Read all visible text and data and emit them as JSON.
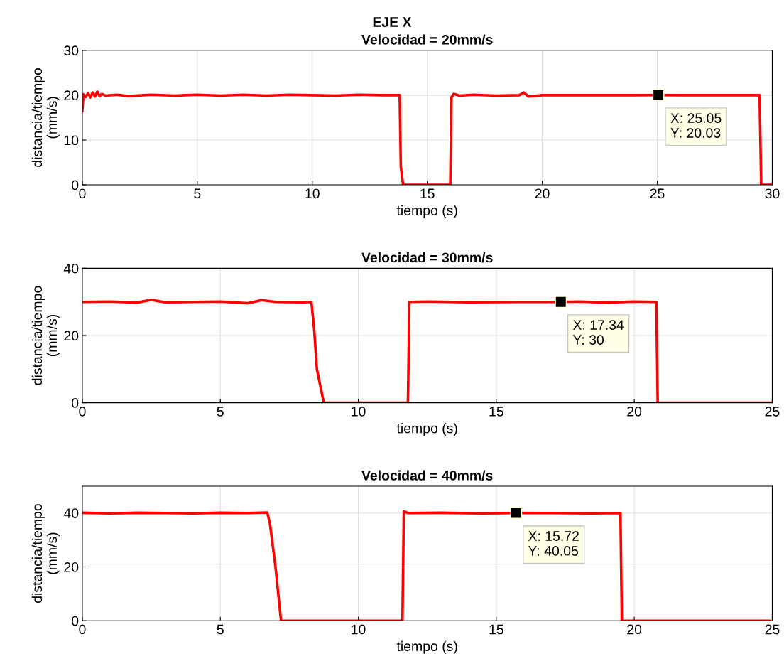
{
  "chart_data": [
    {
      "type": "line",
      "title": "EJE X",
      "subtitle": "Velocidad = 20mm/s",
      "xlabel": "tiempo (s)",
      "ylabel": "distancia/tiempo\n(mm/s)",
      "xlim": [
        0,
        30
      ],
      "ylim": [
        0,
        30
      ],
      "xticks": [
        0,
        5,
        10,
        15,
        20,
        25,
        30
      ],
      "yticks": [
        0,
        10,
        20,
        30
      ],
      "grid": true,
      "series": [
        {
          "color": "#ff0000",
          "x": [
            0,
            0.05,
            0.15,
            0.25,
            0.35,
            0.45,
            0.55,
            0.65,
            0.75,
            0.85,
            1.0,
            1.5,
            2.0,
            3.0,
            4.0,
            5.0,
            6.0,
            7.0,
            8.0,
            9.0,
            10.0,
            11.0,
            12.0,
            13.0,
            13.8,
            13.85,
            13.95,
            15.0,
            16.0,
            16.05,
            16.15,
            16.4,
            17.0,
            18.0,
            19.0,
            19.2,
            19.4,
            20.0,
            22.0,
            24.0,
            25.05,
            26.0,
            28.0,
            29.45,
            29.52,
            29.6,
            30.0
          ],
          "values": [
            16.5,
            20.2,
            19.6,
            20.5,
            19.5,
            20.6,
            19.7,
            20.8,
            19.8,
            20.3,
            19.9,
            20.1,
            19.8,
            20.1,
            19.9,
            20.1,
            19.9,
            20.1,
            19.9,
            20.1,
            20.0,
            19.9,
            20.1,
            20.0,
            20.0,
            4.0,
            0.0,
            0.0,
            0.0,
            19.5,
            20.3,
            19.9,
            20.1,
            19.9,
            20.0,
            20.6,
            19.7,
            20.0,
            20.0,
            20.0,
            20.03,
            20.0,
            20.0,
            20.0,
            0.0,
            0.0,
            0.0
          ]
        }
      ],
      "annotations": [
        {
          "text": "X: 25.05\nY: 20.03",
          "x": 25.05,
          "y": 20.03
        }
      ]
    },
    {
      "type": "line",
      "title": "Velocidad = 30mm/s",
      "xlabel": "tiempo (s)",
      "ylabel": "distancia/tiempo\n(mm/s)",
      "xlim": [
        0,
        25
      ],
      "ylim": [
        0,
        40
      ],
      "xticks": [
        0,
        5,
        10,
        15,
        20,
        25
      ],
      "yticks": [
        0,
        20,
        40
      ],
      "grid": true,
      "series": [
        {
          "color": "#ff0000",
          "x": [
            0,
            1.0,
            2.0,
            2.5,
            3.0,
            4.0,
            5.0,
            6.0,
            6.5,
            7.0,
            8.0,
            8.3,
            8.4,
            8.5,
            8.75,
            10.0,
            11.8,
            11.85,
            12.5,
            14.0,
            16.0,
            17.34,
            18.0,
            19.0,
            20.0,
            20.8,
            20.85,
            22.0,
            25.0
          ],
          "values": [
            30.0,
            30.1,
            29.8,
            30.6,
            29.9,
            30.0,
            30.1,
            29.6,
            30.5,
            30.0,
            29.9,
            30.0,
            22.0,
            10.0,
            0.0,
            0.0,
            0.0,
            30.0,
            30.1,
            29.9,
            30.0,
            30.0,
            30.1,
            29.8,
            30.1,
            30.0,
            0.0,
            0.0,
            0.0
          ]
        }
      ],
      "annotations": [
        {
          "text": "X: 17.34\nY: 30",
          "x": 17.34,
          "y": 30
        }
      ]
    },
    {
      "type": "line",
      "title": "Velocidad = 40mm/s",
      "xlabel": "tiempo (s)",
      "ylabel": "distancia/tiempo\n(mm/s)",
      "xlim": [
        0,
        25
      ],
      "ylim": [
        0,
        50
      ],
      "xticks": [
        0,
        5,
        10,
        15,
        20,
        25
      ],
      "yticks": [
        0,
        20,
        40
      ],
      "grid": true,
      "series": [
        {
          "color": "#ff0000",
          "x": [
            0,
            1.0,
            2.0,
            3.0,
            4.0,
            5.0,
            6.0,
            6.7,
            6.8,
            7.0,
            7.2,
            9.0,
            11.6,
            11.65,
            11.8,
            13.0,
            14.5,
            15.72,
            17.0,
            18.5,
            19.5,
            19.55,
            22.0,
            24.9
          ],
          "values": [
            40.1,
            39.9,
            40.1,
            40.0,
            39.9,
            40.1,
            40.0,
            40.2,
            36.0,
            20.0,
            0.0,
            0.0,
            0.0,
            40.6,
            40.0,
            40.1,
            39.9,
            40.05,
            40.0,
            39.9,
            40.0,
            0.0,
            0.0,
            0.0
          ]
        }
      ],
      "annotations": [
        {
          "text": "X: 15.72\nY: 40.05",
          "x": 15.72,
          "y": 40.05
        }
      ]
    }
  ]
}
